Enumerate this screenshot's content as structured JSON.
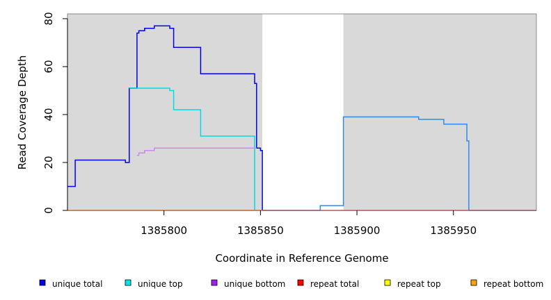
{
  "chart_data": {
    "type": "line",
    "title": "",
    "xlabel": "Coordinate in Reference Genome",
    "ylabel": "Read Coverage Depth",
    "xlim": [
      1385750,
      1385993
    ],
    "ylim": [
      0,
      82
    ],
    "x_ticks": [
      1385800,
      1385850,
      1385900,
      1385950
    ],
    "x_tick_labels": [
      "1385800",
      "1385850",
      "1385900",
      "1385950"
    ],
    "y_ticks": [
      0,
      20,
      40,
      60,
      80
    ],
    "y_tick_labels": [
      "0",
      "20",
      "40",
      "60",
      "80"
    ],
    "background_color": "#d9d9d9",
    "highlight_region": [
      1385851,
      1385893
    ],
    "highlight_color": "#ffffff",
    "legend_position": "bottom",
    "series": [
      {
        "name": "unique total",
        "color": "#0000ee",
        "x": [
          1385750,
          1385754,
          1385754,
          1385780,
          1385780,
          1385782,
          1385782,
          1385786,
          1385786,
          1385787,
          1385787,
          1385790,
          1385790,
          1385795,
          1385795,
          1385803,
          1385803,
          1385805,
          1385805,
          1385819,
          1385819,
          1385847,
          1385847,
          1385848,
          1385848,
          1385850,
          1385850,
          1385851,
          1385851
        ],
        "y": [
          10,
          10,
          21,
          21,
          20,
          20,
          51,
          51,
          74,
          74,
          75,
          75,
          76,
          76,
          77,
          77,
          76,
          76,
          68,
          68,
          57,
          57,
          53,
          53,
          26,
          26,
          25,
          25,
          0
        ]
      },
      {
        "name": "",
        "color": "#3388ee",
        "x": [
          1385851,
          1385881,
          1385881,
          1385893,
          1385893,
          1385932,
          1385932,
          1385945,
          1385945,
          1385957,
          1385957,
          1385958,
          1385958,
          1385993
        ],
        "y": [
          0,
          0,
          2,
          2,
          39,
          39,
          38,
          38,
          36,
          36,
          29,
          29,
          0,
          0
        ]
      },
      {
        "name": "unique top",
        "color": "#00dddd",
        "x": [
          1385782,
          1385803,
          1385803,
          1385805,
          1385805,
          1385819,
          1385819,
          1385847,
          1385847
        ],
        "y": [
          51,
          51,
          50,
          50,
          42,
          42,
          31,
          31,
          0
        ]
      },
      {
        "name": "unique bottom",
        "color": "#cc88ee",
        "x": [
          1385786,
          1385787,
          1385787,
          1385790,
          1385790,
          1385795,
          1385795,
          1385848
        ],
        "y": [
          23,
          23,
          24,
          24,
          25,
          25,
          26,
          26
        ]
      },
      {
        "name": "repeat total",
        "color": "#ee0000",
        "x": [
          1385750,
          1385993
        ],
        "y": [
          0,
          0
        ]
      },
      {
        "name": "repeat bottom",
        "color": "#ffa500",
        "x": [
          1385750,
          1385851
        ],
        "y": [
          0,
          0
        ]
      }
    ],
    "legend": [
      {
        "label": "unique total",
        "color": "#0000ee"
      },
      {
        "label": "unique top",
        "color": "#00e5e5"
      },
      {
        "label": "unique bottom",
        "color": "#a020f0"
      },
      {
        "label": "repeat total",
        "color": "#ff0000"
      },
      {
        "label": "repeat top",
        "color": "#ffff00"
      },
      {
        "label": "repeat bottom",
        "color": "#ffa500"
      }
    ]
  }
}
